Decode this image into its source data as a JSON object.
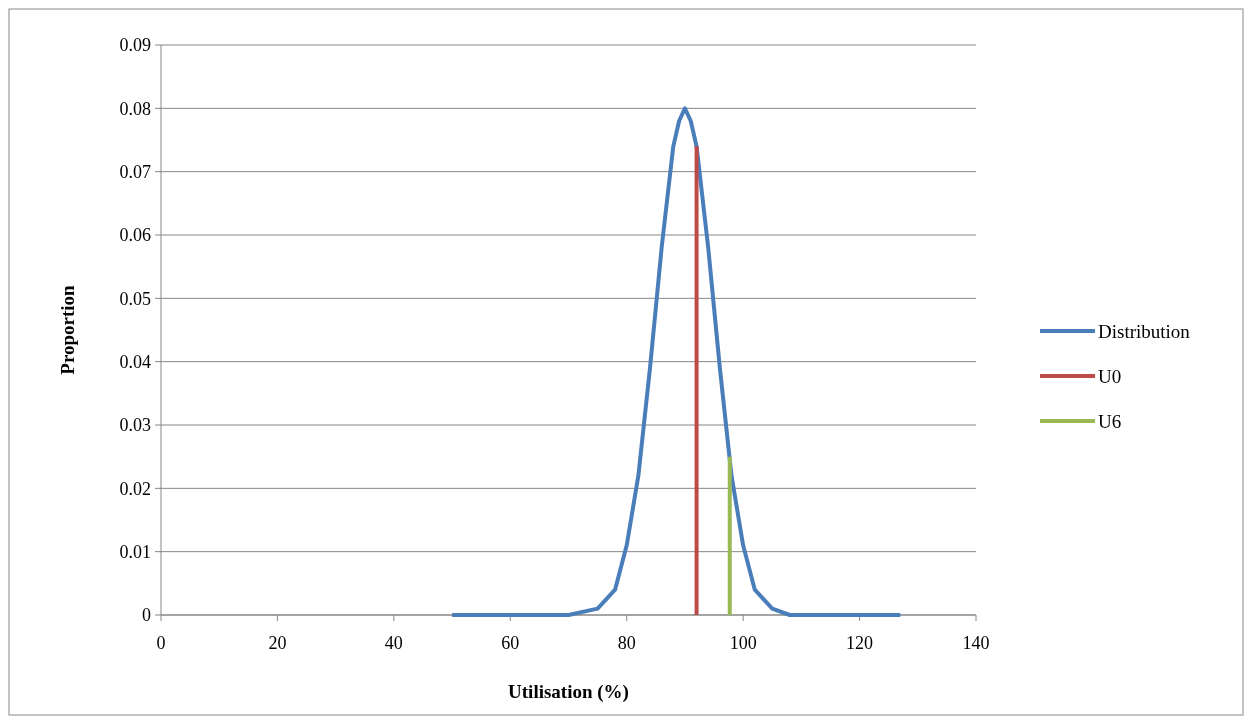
{
  "chart_data": {
    "type": "line",
    "xlabel": "Utilisation (%)",
    "ylabel": "Proportion",
    "xlim": [
      0,
      140
    ],
    "xticks": [
      0,
      20,
      40,
      60,
      80,
      100,
      120,
      140
    ],
    "ylim": [
      0,
      0.09
    ],
    "yticks": [
      {
        "value": 0,
        "label": "0"
      },
      0.01,
      0.02,
      0.03,
      0.04,
      0.05,
      0.06,
      0.07,
      0.08,
      0.09
    ],
    "grid": "y",
    "legend": "right",
    "marker": "none",
    "line_style": "solid",
    "series": [
      {
        "name": "Distribution",
        "color": "#4a7ebb",
        "x": [
          50,
          60,
          70,
          75,
          78,
          80,
          82,
          84,
          86,
          88,
          89,
          90,
          91,
          92,
          94,
          96,
          98,
          100,
          102,
          105,
          108,
          120,
          127
        ],
        "values": [
          0,
          0,
          0,
          0.001,
          0.004,
          0.011,
          0.022,
          0.039,
          0.058,
          0.074,
          0.078,
          0.08,
          0.078,
          0.074,
          0.058,
          0.039,
          0.022,
          0.011,
          0.004,
          0.001,
          0,
          0,
          0
        ]
      },
      {
        "name": "U0",
        "color": "#be4b48",
        "x": [
          92,
          92
        ],
        "values": [
          0,
          0.074
        ]
      },
      {
        "name": "U6",
        "color": "#98b954",
        "x": [
          97.7,
          97.7
        ],
        "values": [
          0,
          0.025
        ]
      }
    ]
  }
}
